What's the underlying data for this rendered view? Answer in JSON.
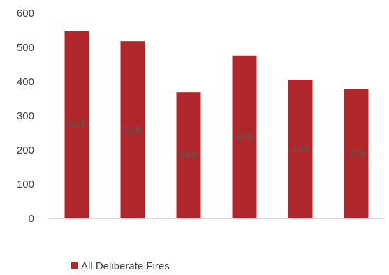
{
  "chart_data": {
    "type": "bar",
    "categories": [
      "",
      "",
      "",
      "",
      "",
      ""
    ],
    "series": [
      {
        "name": "All Deliberate Fires",
        "color": "#b0272b",
        "values": [
          547,
          518,
          369,
          476,
          406,
          379
        ]
      }
    ],
    "data_labels": [
      "547",
      "518",
      "369",
      "476",
      "406",
      "379"
    ],
    "yticks": [
      "0",
      "100",
      "200",
      "300",
      "400",
      "500",
      "600"
    ],
    "ylim": [
      0,
      600
    ],
    "title": "",
    "xlabel": "",
    "ylabel": "",
    "grid": false,
    "legend": "bottom-left",
    "legend_label": "All Deliberate Fires",
    "axis_color": "#d9d9d9"
  }
}
